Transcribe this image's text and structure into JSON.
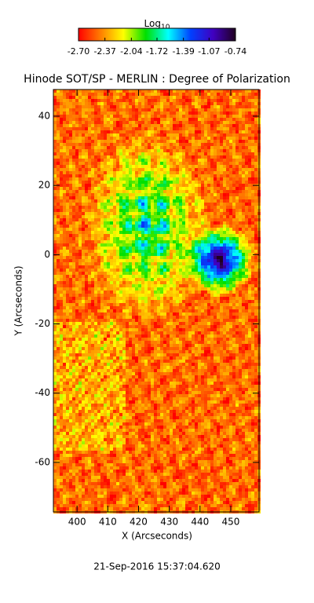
{
  "chart_data": {
    "type": "image",
    "title": "Hinode SOT/SP - MERLIN : Degree of Polarization",
    "colorbar_title": {
      "text": "Log",
      "subscript": "10"
    },
    "colorbar_lim": [
      -2.7,
      -0.74
    ],
    "colorbar_ticks": [
      {
        "value": -2.7,
        "label": "-2.70"
      },
      {
        "value": -2.37,
        "label": "-2.37"
      },
      {
        "value": -2.04,
        "label": "-2.04"
      },
      {
        "value": -1.72,
        "label": "-1.72"
      },
      {
        "value": -1.39,
        "label": "-1.39"
      },
      {
        "value": -1.07,
        "label": "-1.07"
      },
      {
        "value": -0.74,
        "label": "-0.74"
      }
    ],
    "colormap": [
      "#ff0000",
      "#ff8000",
      "#ffff00",
      "#00e000",
      "#00ffff",
      "#0040ff",
      "#4000c0",
      "#200020"
    ],
    "xlabel": "X (Arcseconds)",
    "ylabel": "Y (Arcseconds)",
    "xlim": [
      392.3,
      459.2
    ],
    "ylim": [
      -74.3,
      47.7
    ],
    "xticks": [
      400,
      410,
      420,
      430,
      440,
      450
    ],
    "yticks": [
      -60,
      -40,
      -20,
      0,
      20,
      40
    ],
    "footer": "21-Sep-2016 15:37:04.620"
  }
}
